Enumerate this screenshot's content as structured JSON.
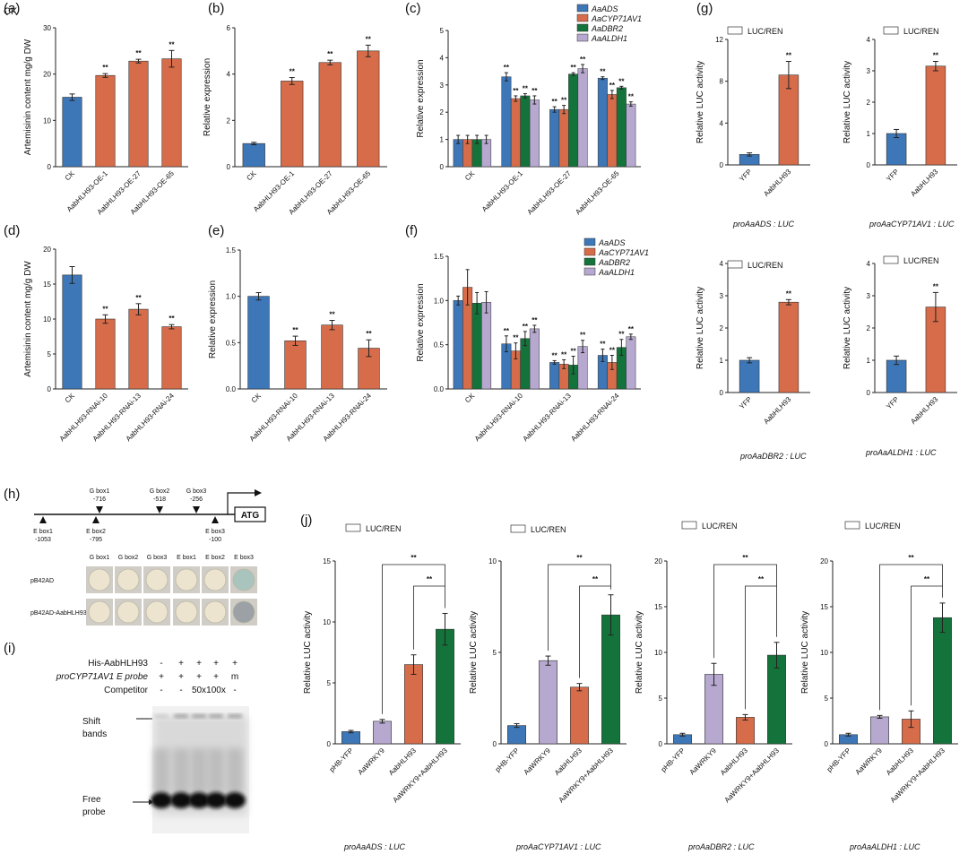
{
  "figure_label": "CK",
  "colors": {
    "blue": "#3d77b8",
    "orange": "#d66c4a",
    "green": "#14733a",
    "purple": "#b6a8cf"
  },
  "chart_data": [
    {
      "id": "a",
      "panel": "(a)",
      "type": "bar",
      "ylabel": "Artemisinin content mg/g DW",
      "categories": [
        "CK",
        "AabHLH93-OE-1",
        "AabHLH93-OE-27",
        "AabHLH93-OE-65"
      ],
      "values": [
        15.0,
        19.7,
        22.8,
        23.3
      ],
      "errors": [
        0.7,
        0.4,
        0.4,
        1.8
      ],
      "colors": [
        "blue",
        "orange",
        "orange",
        "orange"
      ],
      "stars": [
        "",
        "**",
        "**",
        "**"
      ],
      "ylim": [
        0,
        30
      ],
      "yticks": [
        "0",
        "10",
        "20",
        "30"
      ]
    },
    {
      "id": "b",
      "panel": "(b)",
      "type": "bar",
      "ylabel": "Relative expression",
      "categories": [
        "CK",
        "AabHLH93-OE-1",
        "AabHLH93-OE-27",
        "AabHLH93-OE-65"
      ],
      "values": [
        1.0,
        3.7,
        4.5,
        5.0
      ],
      "errors": [
        0.05,
        0.15,
        0.1,
        0.25
      ],
      "colors": [
        "blue",
        "orange",
        "orange",
        "orange"
      ],
      "stars": [
        "",
        "**",
        "**",
        "**"
      ],
      "ylim": [
        0,
        6
      ],
      "yticks": [
        "0",
        "2",
        "4",
        "6"
      ]
    },
    {
      "id": "c",
      "panel": "(c)",
      "type": "grouped_bar",
      "ylabel": "Relative expression",
      "categories": [
        "CK",
        "AabHLH93-OE-1",
        "AabHLH93-OE-27",
        "AabHLH93-OE-65"
      ],
      "series": [
        {
          "name": "AaADS",
          "color": "blue",
          "values": [
            1.0,
            3.3,
            2.1,
            3.25
          ],
          "errors": [
            0.15,
            0.15,
            0.1,
            0.05
          ],
          "stars": [
            "",
            "**",
            "**",
            "**"
          ]
        },
        {
          "name": "AaCYP71AV1",
          "color": "orange",
          "values": [
            1.0,
            2.5,
            2.1,
            2.65
          ],
          "errors": [
            0.15,
            0.1,
            0.15,
            0.15
          ],
          "stars": [
            "",
            "**",
            "**",
            "**"
          ]
        },
        {
          "name": "AaDBR2",
          "color": "green",
          "values": [
            1.0,
            2.6,
            3.4,
            2.9
          ],
          "errors": [
            0.15,
            0.08,
            0.05,
            0.05
          ],
          "stars": [
            "",
            "**",
            "**",
            "**"
          ]
        },
        {
          "name": "AaALDH1",
          "color": "purple",
          "values": [
            1.0,
            2.45,
            3.6,
            2.3
          ],
          "errors": [
            0.15,
            0.15,
            0.15,
            0.08
          ],
          "stars": [
            "",
            "**",
            "**",
            "**"
          ]
        }
      ],
      "ylim": [
        0,
        5
      ],
      "yticks": [
        "0",
        "1",
        "2",
        "3",
        "4",
        "5"
      ]
    },
    {
      "id": "d",
      "panel": "(d)",
      "type": "bar",
      "ylabel": "Artemisinin content mg/g DW",
      "categories": [
        "CK",
        "AabHLH93-RNAi-10",
        "AabHLH93-RNAi-13",
        "AabHLH93-RNAi-24"
      ],
      "values": [
        16.3,
        10.0,
        11.4,
        8.9
      ],
      "errors": [
        1.2,
        0.6,
        0.8,
        0.3
      ],
      "colors": [
        "blue",
        "orange",
        "orange",
        "orange"
      ],
      "stars": [
        "",
        "**",
        "**",
        "**"
      ],
      "ylim": [
        0,
        20
      ],
      "yticks": [
        "0",
        "5",
        "10",
        "15",
        "20"
      ]
    },
    {
      "id": "e",
      "panel": "(e)",
      "type": "bar",
      "ylabel": "Relative expression",
      "categories": [
        "CK",
        "AabHLH93-RNAi-10",
        "AabHLH93-RNAi-13",
        "AabHLH93-RNAi-24"
      ],
      "values": [
        1.0,
        0.52,
        0.69,
        0.44
      ],
      "errors": [
        0.04,
        0.05,
        0.05,
        0.09
      ],
      "colors": [
        "blue",
        "orange",
        "orange",
        "orange"
      ],
      "stars": [
        "",
        "**",
        "**",
        "**"
      ],
      "ylim": [
        0,
        1.5
      ],
      "yticks": [
        "0.0",
        "0.5",
        "1.0",
        "1.5"
      ]
    },
    {
      "id": "f",
      "panel": "(f)",
      "type": "grouped_bar",
      "ylabel": "Relative expression",
      "categories": [
        "CK",
        "AabHLH93-RNAi-10",
        "AabHLH93-RNAi-13",
        "AabHLH93-RNAi-24"
      ],
      "series": [
        {
          "name": "AaADS",
          "color": "blue",
          "values": [
            1.0,
            0.51,
            0.3,
            0.38
          ],
          "errors": [
            0.05,
            0.09,
            0.02,
            0.07
          ],
          "stars": [
            "",
            "**",
            "**",
            "**"
          ]
        },
        {
          "name": "AaCYP71AV1",
          "color": "orange",
          "values": [
            1.15,
            0.43,
            0.28,
            0.3
          ],
          "errors": [
            0.2,
            0.09,
            0.05,
            0.08
          ],
          "stars": [
            "",
            "**",
            "**",
            "**"
          ]
        },
        {
          "name": "AaDBR2",
          "color": "green",
          "values": [
            0.97,
            0.57,
            0.27,
            0.47
          ],
          "errors": [
            0.12,
            0.08,
            0.1,
            0.09
          ],
          "stars": [
            "",
            "**",
            "**",
            "**"
          ]
        },
        {
          "name": "AaALDH1",
          "color": "purple",
          "values": [
            0.98,
            0.68,
            0.48,
            0.59
          ],
          "errors": [
            0.12,
            0.04,
            0.07,
            0.03
          ],
          "stars": [
            "",
            "**",
            "**",
            "**"
          ]
        }
      ],
      "ylim": [
        0,
        1.5
      ],
      "yticks": [
        "0.0",
        "0.5",
        "1.0",
        "1.5"
      ]
    },
    {
      "id": "g1",
      "panel": "(g)",
      "type": "bar",
      "ylabel": "Relative LUC activity",
      "legend": "LUC/REN",
      "caption": "proAaADS : LUC",
      "categories": [
        "YFP",
        "AabHLH93"
      ],
      "values": [
        1.0,
        8.6
      ],
      "errors": [
        0.15,
        1.3
      ],
      "colors": [
        "blue",
        "orange"
      ],
      "stars": [
        "",
        "**"
      ],
      "ylim": [
        0,
        12
      ],
      "yticks": [
        "0",
        "4",
        "8",
        "12"
      ]
    },
    {
      "id": "g2",
      "panel": "",
      "type": "bar",
      "ylabel": "Relative LUC activity",
      "legend": "LUC/REN",
      "caption": "proAaCYP71AV1 : LUC",
      "categories": [
        "YFP",
        "AabHLH93"
      ],
      "values": [
        1.0,
        3.15
      ],
      "errors": [
        0.13,
        0.15
      ],
      "colors": [
        "blue",
        "orange"
      ],
      "stars": [
        "",
        "**"
      ],
      "ylim": [
        0,
        4
      ],
      "yticks": [
        "0",
        "1",
        "2",
        "3",
        "4"
      ]
    },
    {
      "id": "g3",
      "panel": "",
      "type": "bar",
      "ylabel": "Relative LUC activity",
      "legend": "LUC/REN",
      "caption": "proAaDBR2 : LUC",
      "categories": [
        "YFP",
        "AabHLH93"
      ],
      "values": [
        1.0,
        2.8
      ],
      "errors": [
        0.08,
        0.08
      ],
      "colors": [
        "blue",
        "orange"
      ],
      "stars": [
        "",
        "**"
      ],
      "ylim": [
        0,
        4
      ],
      "yticks": [
        "0",
        "1",
        "2",
        "3",
        "4"
      ]
    },
    {
      "id": "g4",
      "panel": "",
      "type": "bar",
      "ylabel": "Relative LUC activity",
      "legend": "LUC/REN",
      "caption": "proAaALDH1 : LUC",
      "categories": [
        "YFP",
        "AabHLH93"
      ],
      "values": [
        1.0,
        2.65
      ],
      "errors": [
        0.13,
        0.45
      ],
      "colors": [
        "blue",
        "orange"
      ],
      "stars": [
        "",
        "**"
      ],
      "ylim": [
        0,
        4
      ],
      "yticks": [
        "0",
        "1",
        "2",
        "3",
        "4"
      ]
    },
    {
      "id": "j1",
      "panel": "(j)",
      "type": "bar",
      "ylabel": "Relative LUC activity",
      "legend": "LUC/REN",
      "caption": "proAaADS : LUC",
      "categories": [
        "pHB-YFP",
        "AaWRKY9",
        "AabHLH93",
        "AaWRKY9+AabHLH93"
      ],
      "values": [
        1.0,
        1.85,
        6.5,
        9.4
      ],
      "errors": [
        0.1,
        0.15,
        0.8,
        1.3
      ],
      "colors": [
        "blue",
        "purple",
        "orange",
        "green"
      ],
      "stars": [
        "",
        "",
        "",
        ""
      ],
      "ylim": [
        0,
        15
      ],
      "yticks": [
        "0",
        "5",
        "10",
        "15"
      ],
      "brackets": [
        "**",
        "**"
      ]
    },
    {
      "id": "j2",
      "panel": "",
      "type": "bar",
      "ylabel": "Relative LUC activity",
      "legend": "LUC/REN",
      "caption": "proAaCYP71AV1 : LUC",
      "categories": [
        "pHB-YFP",
        "AaWRKY9",
        "AabHLH93",
        "AaWRKY9+AabHLH93"
      ],
      "values": [
        1.0,
        4.55,
        3.1,
        7.05
      ],
      "errors": [
        0.1,
        0.25,
        0.2,
        1.1
      ],
      "colors": [
        "blue",
        "purple",
        "orange",
        "green"
      ],
      "stars": [
        "",
        "",
        "",
        ""
      ],
      "ylim": [
        0,
        10
      ],
      "yticks": [
        "0",
        "5",
        "10"
      ],
      "brackets": [
        "**",
        "**"
      ]
    },
    {
      "id": "j3",
      "panel": "",
      "type": "bar",
      "ylabel": "Relative LUC activity",
      "legend": "LUC/REN",
      "caption": "proAaDBR2 : LUC",
      "categories": [
        "pHB-YFP",
        "AaWRKY9",
        "AabHLH93",
        "AaWRKY9+AabHLH93"
      ],
      "values": [
        1.0,
        7.6,
        2.9,
        9.7
      ],
      "errors": [
        0.15,
        1.2,
        0.3,
        1.4
      ],
      "colors": [
        "blue",
        "purple",
        "orange",
        "green"
      ],
      "stars": [
        "",
        "",
        "",
        ""
      ],
      "ylim": [
        0,
        20
      ],
      "yticks": [
        "0",
        "5",
        "10",
        "15",
        "20"
      ],
      "brackets": [
        "**",
        "**"
      ]
    },
    {
      "id": "j4",
      "panel": "",
      "type": "bar",
      "ylabel": "Relative LUC activity",
      "legend": "LUC/REN",
      "caption": "proAaALDH1 : LUC",
      "categories": [
        "pHB-YFP",
        "AaWRKY9",
        "AabHLH93",
        "AaWRKY9+AabHLH93"
      ],
      "values": [
        1.0,
        2.95,
        2.7,
        13.8
      ],
      "errors": [
        0.15,
        0.15,
        0.9,
        1.6
      ],
      "colors": [
        "blue",
        "purple",
        "orange",
        "green"
      ],
      "stars": [
        "",
        "",
        "",
        ""
      ],
      "ylim": [
        0,
        20
      ],
      "yticks": [
        "0",
        "5",
        "10",
        "15",
        "20"
      ],
      "brackets": [
        "**",
        "**"
      ]
    }
  ],
  "promoter": {
    "panel": "(h)",
    "atg": "ATG",
    "above": [
      {
        "name": "G box1",
        "pos": "-716"
      },
      {
        "name": "G box2",
        "pos": "-518"
      },
      {
        "name": "G box3",
        "pos": "-256"
      }
    ],
    "below": [
      {
        "name": "E box1",
        "pos": "-1053"
      },
      {
        "name": "E box2",
        "pos": "-795"
      },
      {
        "name": "E box3",
        "pos": "-100"
      }
    ]
  },
  "y1h": {
    "columns": [
      "G box1",
      "G box2",
      "G box3",
      "E box1",
      "E box2",
      "E box3"
    ],
    "rows": [
      "pB42AD",
      "pB42AD-AabHLH93"
    ]
  },
  "emsa": {
    "panel": "(i)",
    "rows": [
      {
        "label": "His-AabHLH93",
        "italic": false,
        "marks": [
          "-",
          "+",
          "+",
          "+",
          "+"
        ]
      },
      {
        "label": "proCYP71AV1 E probe",
        "italic": true,
        "marks": [
          "+",
          "+",
          "+",
          "+",
          "m"
        ]
      },
      {
        "label": "Competitor",
        "italic": false,
        "marks": [
          "-",
          "-",
          "50x",
          "100x",
          "-"
        ]
      }
    ],
    "shift_label": [
      "Shift",
      "bands"
    ],
    "free_label": [
      "Free",
      "probe"
    ]
  }
}
